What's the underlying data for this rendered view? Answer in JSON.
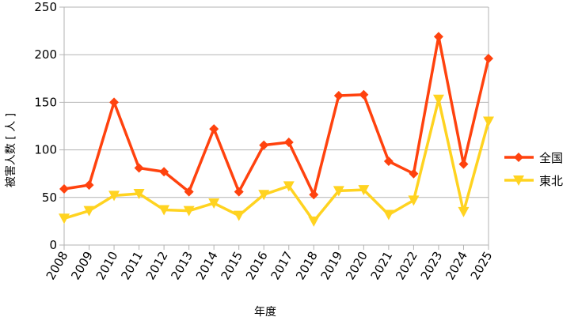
{
  "chart_data": {
    "type": "line",
    "xlabel": "年度",
    "ylabel": "被害人数 [ 人 ]",
    "ylim": [
      0,
      250
    ],
    "yticks": [
      0,
      50,
      100,
      150,
      200,
      250
    ],
    "grid": true,
    "legend_position": "right",
    "categories": [
      "2008",
      "2009",
      "2010",
      "2011",
      "2012",
      "2013",
      "2014",
      "2015",
      "2016",
      "2017",
      "2018",
      "2019",
      "2020",
      "2021",
      "2022",
      "2023",
      "2024",
      "2025"
    ],
    "series": [
      {
        "name": "全国",
        "color": "#ff420e",
        "marker": "diamond",
        "values": [
          59,
          63,
          150,
          81,
          77,
          56,
          122,
          56,
          105,
          108,
          53,
          157,
          158,
          88,
          75,
          219,
          85,
          196
        ]
      },
      {
        "name": "東北",
        "color": "#ffd320",
        "marker": "triangle-down",
        "values": [
          28,
          36,
          52,
          54,
          37,
          36,
          44,
          31,
          53,
          62,
          25,
          57,
          58,
          32,
          47,
          153,
          35,
          130
        ]
      }
    ]
  }
}
